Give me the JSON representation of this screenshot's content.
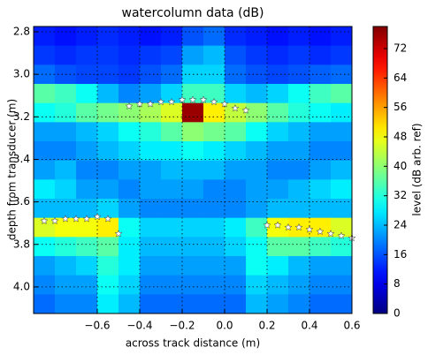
{
  "chart_data": {
    "type": "heatmap",
    "title": "watercolumn data (dB)",
    "x_label": "across track distance (m)",
    "y_label": "depth from transducer (m)",
    "colorbar_label": "level (dB arb. ref)",
    "colormap": "jet",
    "xlim": [
      -0.9,
      0.6
    ],
    "ylim": [
      2.775,
      4.125
    ],
    "y_inverted": true,
    "clim": [
      0,
      78
    ],
    "grid": true,
    "xticks": [
      {
        "value": -0.6,
        "label": "−0.6"
      },
      {
        "value": -0.4,
        "label": "−0.4"
      },
      {
        "value": -0.2,
        "label": "−0.2"
      },
      {
        "value": 0,
        "label": "0.0"
      },
      {
        "value": 0.2,
        "label": "0.2"
      },
      {
        "value": 0.4,
        "label": "0.4"
      },
      {
        "value": 0.6,
        "label": "0.6"
      }
    ],
    "yticks": [
      2.8,
      {
        "value": 3,
        "label": "3.0"
      },
      3.2,
      3.4,
      3.6,
      3.8,
      {
        "value": 4,
        "label": "4.0"
      }
    ],
    "cticks": [
      0,
      8,
      16,
      24,
      32,
      40,
      48,
      56,
      64,
      72
    ],
    "x": [
      -0.85,
      -0.75,
      -0.65,
      -0.55,
      -0.45,
      -0.35,
      -0.25,
      -0.15,
      -0.05,
      0.05,
      0.15,
      0.25,
      0.35,
      0.45,
      0.55
    ],
    "y": [
      2.82,
      2.91,
      3.0,
      3.09,
      3.18,
      3.27,
      3.36,
      3.45,
      3.54,
      3.63,
      3.72,
      3.81,
      3.9,
      3.99,
      4.08
    ],
    "z": [
      [
        12,
        11,
        12,
        13,
        12,
        11,
        12,
        16,
        18,
        13,
        12,
        11,
        12,
        11,
        12
      ],
      [
        14,
        13,
        14,
        14,
        13,
        14,
        15,
        22,
        24,
        16,
        14,
        13,
        14,
        13,
        14
      ],
      [
        18,
        16,
        15,
        15,
        14,
        16,
        18,
        26,
        26,
        18,
        16,
        15,
        16,
        17,
        18
      ],
      [
        36,
        34,
        30,
        24,
        20,
        22,
        26,
        34,
        34,
        26,
        24,
        26,
        30,
        34,
        36
      ],
      [
        30,
        32,
        36,
        38,
        40,
        42,
        46,
        76,
        50,
        44,
        40,
        36,
        32,
        30,
        28
      ],
      [
        22,
        22,
        24,
        26,
        30,
        32,
        36,
        40,
        38,
        36,
        30,
        26,
        24,
        22,
        22
      ],
      [
        20,
        20,
        22,
        24,
        26,
        28,
        28,
        30,
        28,
        26,
        24,
        22,
        22,
        20,
        20
      ],
      [
        22,
        24,
        20,
        20,
        22,
        22,
        24,
        24,
        24,
        22,
        22,
        20,
        20,
        22,
        24
      ],
      [
        28,
        26,
        22,
        22,
        20,
        22,
        22,
        22,
        20,
        20,
        22,
        22,
        24,
        26,
        28
      ],
      [
        24,
        24,
        24,
        26,
        22,
        20,
        20,
        20,
        20,
        20,
        22,
        24,
        24,
        24,
        24
      ],
      [
        46,
        48,
        48,
        50,
        30,
        26,
        26,
        26,
        26,
        28,
        34,
        48,
        50,
        50,
        46
      ],
      [
        30,
        32,
        34,
        36,
        28,
        24,
        24,
        24,
        24,
        26,
        30,
        36,
        36,
        34,
        32
      ],
      [
        22,
        24,
        26,
        32,
        28,
        22,
        22,
        22,
        22,
        22,
        30,
        28,
        24,
        22,
        22
      ],
      [
        20,
        22,
        22,
        30,
        26,
        20,
        20,
        20,
        20,
        20,
        26,
        24,
        22,
        20,
        20
      ],
      [
        18,
        20,
        20,
        28,
        24,
        18,
        18,
        18,
        18,
        18,
        24,
        22,
        20,
        18,
        18
      ]
    ],
    "markers": {
      "color": "#ffffff",
      "x": [
        -0.45,
        -0.4,
        -0.35,
        -0.3,
        -0.25,
        -0.2,
        -0.15,
        -0.1,
        -0.05,
        0.0,
        0.05,
        0.1,
        -0.85,
        -0.8,
        -0.75,
        -0.7,
        -0.65,
        -0.6,
        -0.55,
        -0.5,
        0.2,
        0.25,
        0.3,
        0.35,
        0.4,
        0.45,
        0.5,
        0.55,
        0.6
      ],
      "y": [
        3.15,
        3.14,
        3.14,
        3.13,
        3.13,
        3.12,
        3.12,
        3.12,
        3.13,
        3.14,
        3.16,
        3.17,
        3.69,
        3.69,
        3.68,
        3.68,
        3.68,
        3.67,
        3.68,
        3.75,
        3.71,
        3.71,
        3.72,
        3.72,
        3.73,
        3.74,
        3.75,
        3.76,
        3.77
      ]
    }
  }
}
